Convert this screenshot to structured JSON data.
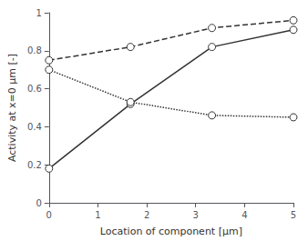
{
  "chart_data": {
    "type": "line",
    "x": [
      0,
      1.667,
      3.333,
      5
    ],
    "series": [
      {
        "color": "#333333",
        "line_style": "solid",
        "marker": "circle",
        "values": [
          0.18,
          0.52,
          0.82,
          0.91
        ]
      },
      {
        "color": "#333333",
        "line_style": "dashed",
        "marker": "circle",
        "values": [
          0.75,
          0.82,
          0.92,
          0.96
        ]
      },
      {
        "color": "#333333",
        "line_style": "dotted",
        "marker": "circle",
        "values": [
          0.7,
          0.53,
          0.46,
          0.45
        ]
      }
    ],
    "xlabel": "Location of component [μm]",
    "ylabel": "Activity at x=0 μm [-]",
    "xlim": [
      0,
      5
    ],
    "ylim": [
      0,
      1
    ],
    "xticks": [
      0,
      1,
      2,
      3,
      4,
      5
    ],
    "yticks": [
      0,
      0.2,
      0.4,
      0.6,
      0.8,
      1
    ],
    "grid": false
  }
}
